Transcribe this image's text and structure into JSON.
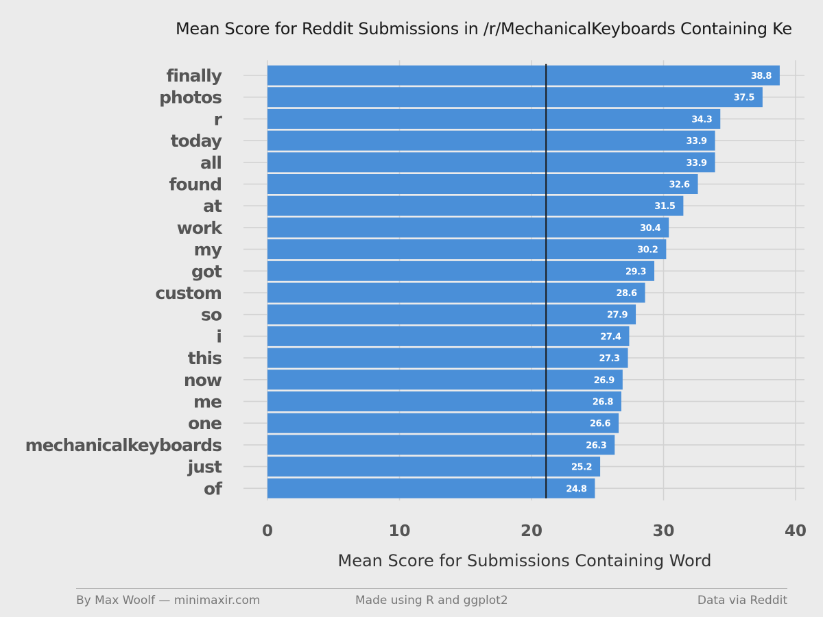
{
  "chart_data": {
    "type": "bar",
    "orientation": "horizontal",
    "title": "Mean Score for Reddit Submissions in /r/MechanicalKeyboards Containing Ke",
    "xlabel": "Mean Score for Submissions Containing Word",
    "ylabel": "",
    "categories": [
      "finally",
      "photos",
      "r",
      "today",
      "all",
      "found",
      "at",
      "work",
      "my",
      "got",
      "custom",
      "so",
      "i",
      "this",
      "now",
      "me",
      "one",
      "mechanicalkeyboards",
      "just",
      "of"
    ],
    "values": [
      38.8,
      37.5,
      34.3,
      33.9,
      33.9,
      32.6,
      31.5,
      30.4,
      30.2,
      29.3,
      28.6,
      27.9,
      27.4,
      27.3,
      26.9,
      26.8,
      26.6,
      26.3,
      25.2,
      24.8
    ],
    "value_labels": [
      "38.8",
      "37.5",
      "34.3",
      "33.9",
      "33.9",
      "32.6",
      "31.5",
      "30.4",
      "30.2",
      "29.3",
      "28.6",
      "27.9",
      "27.4",
      "27.3",
      "26.9",
      "26.8",
      "26.6",
      "26.3",
      "25.2",
      "24.8"
    ],
    "xlim": [
      0,
      40
    ],
    "x_ticks": [
      0,
      10,
      20,
      30,
      40
    ],
    "x_tick_labels": [
      "0",
      "10",
      "20",
      "30",
      "40"
    ],
    "reference_line": 21.1,
    "grid": true,
    "legend": "none",
    "bar_color": "#4a8fd8",
    "reference_line_color": "#1a1a1a"
  },
  "footer": {
    "left": "By Max Woolf — minimaxir.com",
    "center": "Made using R and ggplot2",
    "right": "Data via Reddit"
  }
}
